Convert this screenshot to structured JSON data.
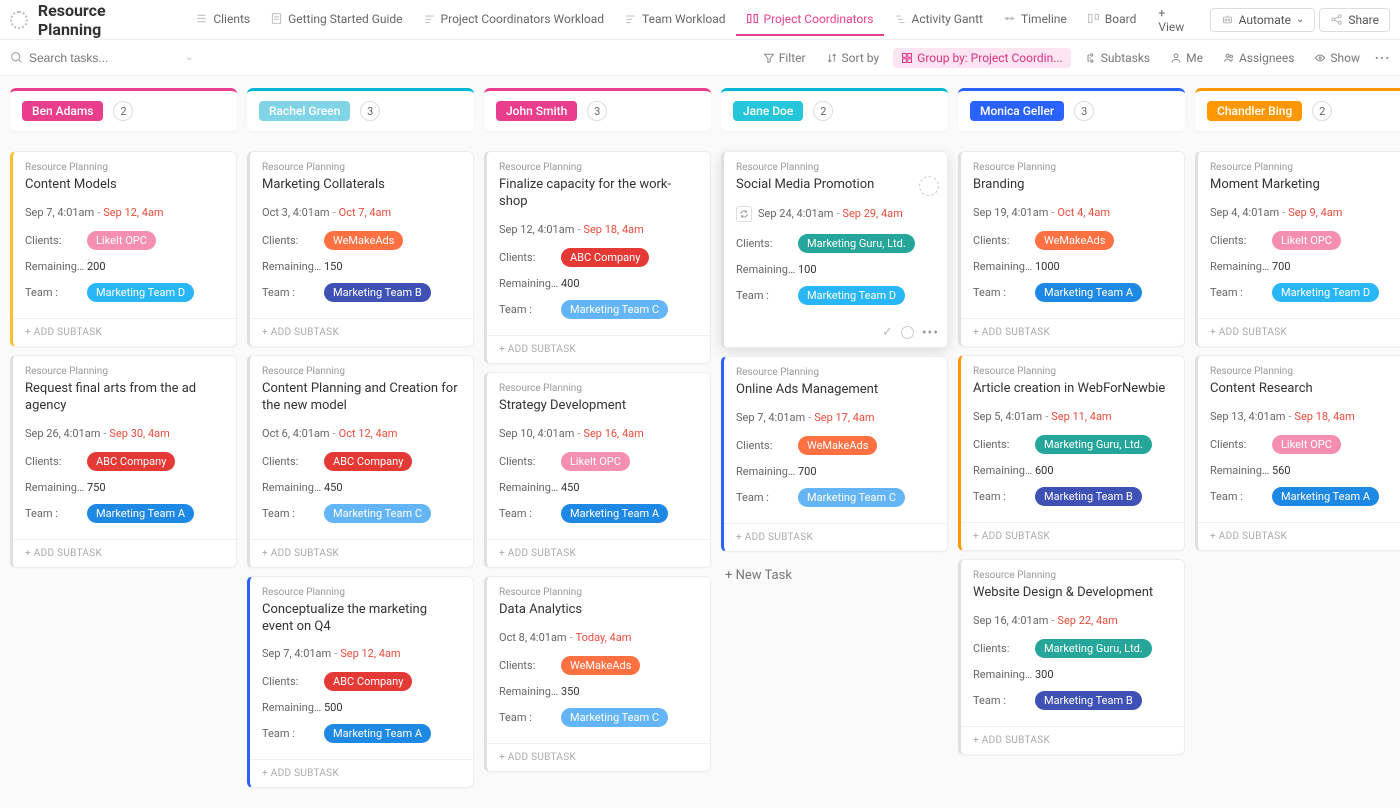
{
  "header": {
    "title": "Resource Planning",
    "tabs": [
      {
        "label": "Clients"
      },
      {
        "label": "Getting Started Guide"
      },
      {
        "label": "Project Coordinators Workload"
      },
      {
        "label": "Team Workload"
      },
      {
        "label": "Project Coordinators",
        "active": true
      },
      {
        "label": "Activity Gantt"
      },
      {
        "label": "Timeline"
      },
      {
        "label": "Board"
      }
    ],
    "add_view": "+ View",
    "automate": "Automate",
    "share": "Share"
  },
  "filters": {
    "search_placeholder": "Search tasks...",
    "filter": "Filter",
    "sortby": "Sort by",
    "groupby": "Group by: Project Coordin...",
    "subtasks": "Subtasks",
    "me": "Me",
    "assignees": "Assignees",
    "show": "Show"
  },
  "colors": {
    "ben_border": "#e83e8c",
    "ben_chip": "#e83e8c",
    "rachel_border": "#00b8d4",
    "rachel_chip": "#80d4e6",
    "john_border": "#e83e8c",
    "john_chip": "#e83e8c",
    "jane_border": "#00b8d4",
    "jane_chip": "#26c6da",
    "monica_border": "#2962ff",
    "monica_chip": "#2962ff",
    "chandler_border": "#ff9800",
    "chandler_chip": "#ff9800",
    "client_likeit": "#f48fb1",
    "client_wemakeads": "#ff7043",
    "client_abc": "#e53935",
    "client_guru": "#26a69a",
    "team_a": "#1e88e5",
    "team_b": "#3f51b5",
    "team_c": "#64b5f6",
    "team_d": "#29b6f6",
    "card_yellow": "#fbc02d",
    "card_orange": "#ff9800",
    "card_blue": "#2962ff",
    "card_grey": "#e0e0e0"
  },
  "labels": {
    "project": "Resource Planning",
    "clients": "Clients:",
    "remaining": "Remaining ...",
    "team": "Team :",
    "add_subtask": "+ ADD SUBTASK",
    "new_task": "+ New Task"
  },
  "columns": [
    {
      "name": "Ben Adams",
      "count": "2",
      "border": "ben_border",
      "chip": "ben_chip",
      "cards": [
        {
          "title": "Content Models",
          "start": "Sep 7, 4:01am",
          "end": "Sep 12, 4am",
          "client": "LikeIt OPC",
          "client_color": "client_likeit",
          "remaining": "200",
          "team": "Marketing Team D",
          "team_color": "team_d",
          "stripe": "card_yellow"
        },
        {
          "title": "Request final arts from the ad agency",
          "start": "Sep 26, 4:01am",
          "end": "Sep 30, 4am",
          "client": "ABC Company",
          "client_color": "client_abc",
          "remaining": "750",
          "team": "Marketing Team A",
          "team_color": "team_a",
          "stripe": "card_grey"
        }
      ]
    },
    {
      "name": "Rachel Green",
      "count": "3",
      "border": "rachel_border",
      "chip": "rachel_chip",
      "cards": [
        {
          "title": "Marketing Collaterals",
          "start": "Oct 3, 4:01am",
          "end": "Oct 7, 4am",
          "client": "WeMakeAds",
          "client_color": "client_wemakeads",
          "remaining": "150",
          "team": "Marketing Team B",
          "team_color": "team_b",
          "stripe": "card_grey"
        },
        {
          "title": "Content Planning and Creation for the new model",
          "start": "Oct 6, 4:01am",
          "end": "Oct 12, 4am",
          "client": "ABC Company",
          "client_color": "client_abc",
          "remaining": "450",
          "team": "Marketing Team C",
          "team_color": "team_c",
          "stripe": "card_grey"
        },
        {
          "title": "Conceptualize the marketing event on Q4",
          "start": "Sep 7, 4:01am",
          "end": "Sep 12, 4am",
          "client": "ABC Company",
          "client_color": "client_abc",
          "remaining": "500",
          "team": "Marketing Team A",
          "team_color": "team_a",
          "stripe": "card_blue"
        }
      ]
    },
    {
      "name": "John Smith",
      "count": "3",
      "border": "john_border",
      "chip": "john_chip",
      "cards": [
        {
          "title": "Finalize capacity for the work-shop",
          "start": "Sep 12, 4:01am",
          "end": "Sep 18, 4am",
          "client": "ABC Company",
          "client_color": "client_abc",
          "remaining": "400",
          "team": "Marketing Team C",
          "team_color": "team_c",
          "stripe": "card_grey"
        },
        {
          "title": "Strategy Development",
          "start": "Sep 10, 4:01am",
          "end": "Sep 16, 4am",
          "client": "LikeIt OPC",
          "client_color": "client_likeit",
          "remaining": "450",
          "team": "Marketing Team A",
          "team_color": "team_a",
          "stripe": "card_grey"
        },
        {
          "title": "Data Analytics",
          "start": "Oct 8, 4:01am",
          "end": "Today, 4am",
          "client": "WeMakeAds",
          "client_color": "client_wemakeads",
          "remaining": "350",
          "team": "Marketing Team C",
          "team_color": "team_c",
          "stripe": "card_grey"
        }
      ]
    },
    {
      "name": "Jane Doe",
      "count": "2",
      "border": "jane_border",
      "chip": "jane_chip",
      "cards": [
        {
          "title": "Social Media Promotion",
          "start": "Sep 24, 4:01am",
          "end": "Sep 29, 4am",
          "client": "Marketing Guru, Ltd.",
          "client_color": "client_guru",
          "remaining": "100",
          "team": "Marketing Team D",
          "team_color": "team_d",
          "stripe": "card_grey",
          "hovered": true,
          "recur": true
        },
        {
          "title": "Online Ads Management",
          "start": "Sep 7, 4:01am",
          "end": "Sep 17, 4am",
          "client": "WeMakeAds",
          "client_color": "client_wemakeads",
          "remaining": "700",
          "team": "Marketing Team C",
          "team_color": "team_c",
          "stripe": "card_blue"
        }
      ],
      "show_new_task": true
    },
    {
      "name": "Monica Geller",
      "count": "3",
      "border": "monica_border",
      "chip": "monica_chip",
      "cards": [
        {
          "title": "Branding",
          "start": "Sep 19, 4:01am",
          "end": "Oct 4, 4am",
          "client": "WeMakeAds",
          "client_color": "client_wemakeads",
          "remaining": "1000",
          "team": "Marketing Team A",
          "team_color": "team_a",
          "stripe": "card_grey"
        },
        {
          "title": "Article creation in WebForNewbie",
          "start": "Sep 5, 4:01am",
          "end": "Sep 11, 4am",
          "client": "Marketing Guru, Ltd.",
          "client_color": "client_guru",
          "remaining": "600",
          "team": "Marketing Team B",
          "team_color": "team_b",
          "stripe": "card_orange"
        },
        {
          "title": "Website Design & Development",
          "start": "Sep 16, 4:01am",
          "end": "Sep 22, 4am",
          "client": "Marketing Guru, Ltd.",
          "client_color": "client_guru",
          "remaining": "300",
          "team": "Marketing Team B",
          "team_color": "team_b",
          "stripe": "card_grey"
        }
      ]
    },
    {
      "name": "Chandler Bing",
      "count": "2",
      "border": "chandler_border",
      "chip": "chandler_chip",
      "cards": [
        {
          "title": "Moment Marketing",
          "start": "Sep 4, 4:01am",
          "end": "Sep 9, 4am",
          "client": "LikeIt OPC",
          "client_color": "client_likeit",
          "remaining": "700",
          "team": "Marketing Team D",
          "team_color": "team_d",
          "stripe": "card_grey"
        },
        {
          "title": "Content Research",
          "start": "Sep 13, 4:01am",
          "end": "Sep 18, 4am",
          "client": "LikeIt OPC",
          "client_color": "client_likeit",
          "remaining": "560",
          "team": "Marketing Team A",
          "team_color": "team_a",
          "stripe": "card_grey"
        }
      ]
    }
  ]
}
